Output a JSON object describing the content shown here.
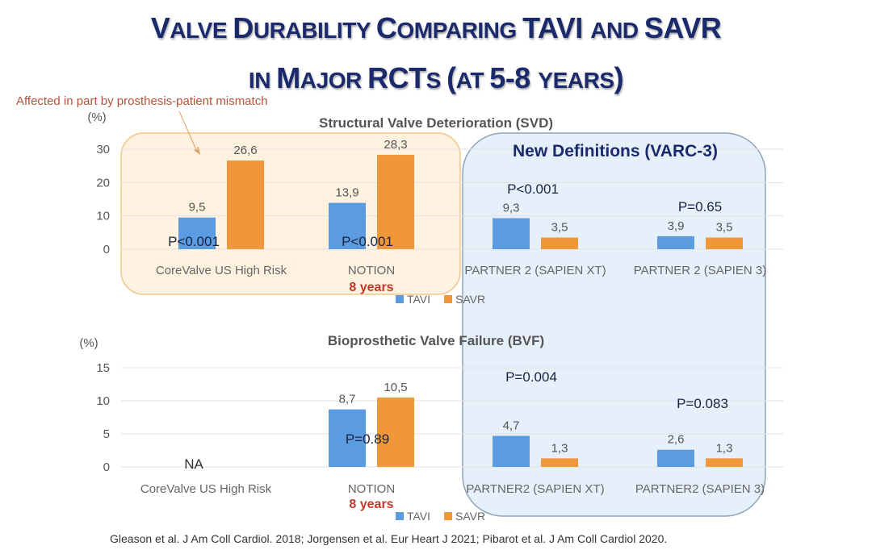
{
  "slide": {
    "title_line1": [
      {
        "t": "V",
        "big": true
      },
      {
        "t": "ALVE ",
        "big": false
      },
      {
        "t": "D",
        "big": true
      },
      {
        "t": "URABILITY ",
        "big": false
      },
      {
        "t": "C",
        "big": true
      },
      {
        "t": "OMPARING ",
        "big": false
      },
      {
        "t": "TAVI ",
        "big": true
      },
      {
        "t": "AND ",
        "big": false
      },
      {
        "t": "SAVR",
        "big": true
      }
    ],
    "title_line2": [
      {
        "t": "IN ",
        "big": false
      },
      {
        "t": "M",
        "big": true
      },
      {
        "t": "AJOR ",
        "big": false
      },
      {
        "t": "RCT",
        "big": true
      },
      {
        "t": "S ",
        "big": false
      },
      {
        "t": "(",
        "big": true
      },
      {
        "t": "AT ",
        "big": false
      },
      {
        "t": "5-8 ",
        "big": true
      },
      {
        "t": "YEARS",
        "big": false
      },
      {
        "t": ")",
        "big": true
      }
    ],
    "annotation": "Affected in part by prosthesis-patient mismatch",
    "varc_label": "New Definitions (VARC-3)",
    "citation": "Gleason et al. J Am Coll Cardiol. 2018; Jorgensen et al. Eur Heart J 2021; Pibarot et al. J Am Coll Cardiol 2020.",
    "colors": {
      "tavi": "#5b9be0",
      "savr": "#f0973a",
      "title": "#1a2a6c",
      "note": "#c0392b",
      "annotation": "#b5533c",
      "orange_box": "#fdf1df",
      "blue_box": "#e6f0fb"
    }
  },
  "chart_data": [
    {
      "type": "bar",
      "title": "Structural Valve Deterioration (SVD)",
      "ylabel": "(%)",
      "ylim": [
        0,
        30
      ],
      "yticks": [
        0,
        10,
        20,
        30
      ],
      "grid": true,
      "legend": "bottom-center",
      "categories": [
        "CoreValve US High Risk",
        "NOTION",
        "PARTNER 2 (SAPIEN XT)",
        "PARTNER 2 (SAPIEN 3)"
      ],
      "category_notes": [
        "",
        "8 years",
        "",
        ""
      ],
      "series": [
        {
          "name": "TAVI",
          "values": [
            9.5,
            13.9,
            9.3,
            3.9
          ],
          "labels": [
            "9,5",
            "13,9",
            "9,3",
            "3,9"
          ]
        },
        {
          "name": "SAVR",
          "values": [
            26.6,
            28.3,
            3.5,
            3.5
          ],
          "labels": [
            "26,6",
            "28,3",
            "3,5",
            "3,5"
          ]
        }
      ],
      "p_values": [
        "P<0.001",
        "P<0.001",
        "P<0.001",
        "P=0.65"
      ]
    },
    {
      "type": "bar",
      "title": "Bioprosthetic Valve Failure (BVF)",
      "ylabel": "(%)",
      "ylim": [
        0,
        15
      ],
      "yticks": [
        0,
        5,
        10,
        15
      ],
      "grid": true,
      "legend": "bottom-center",
      "categories": [
        "CoreValve US High Risk",
        "NOTION",
        "PARTNER2 (SAPIEN XT)",
        "PARTNER2 (SAPIEN 3)"
      ],
      "category_notes": [
        "",
        "8 years",
        "",
        ""
      ],
      "series": [
        {
          "name": "TAVI",
          "values": [
            null,
            8.7,
            4.7,
            2.6
          ],
          "labels": [
            "",
            "8,7",
            "4,7",
            "2,6"
          ]
        },
        {
          "name": "SAVR",
          "values": [
            null,
            10.5,
            1.3,
            1.3
          ],
          "labels": [
            "",
            "10,5",
            "1,3",
            "1,3"
          ]
        }
      ],
      "na_label": "NA",
      "p_values": [
        "",
        "P=0.89",
        "P=0.004",
        "P=0.083"
      ]
    }
  ]
}
